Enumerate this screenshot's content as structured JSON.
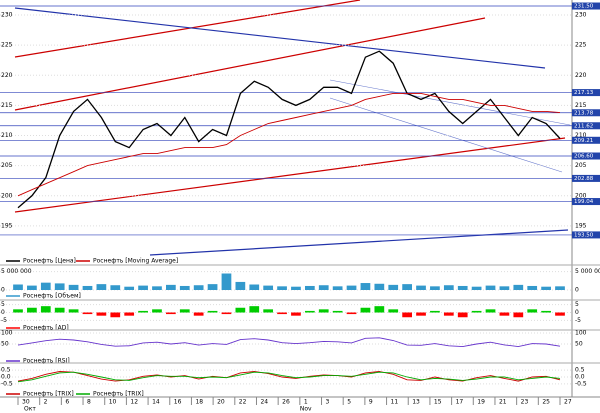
{
  "chart_data": [
    {
      "type": "line",
      "ylim": [
        190,
        232.5
      ],
      "yticks": [
        195,
        200,
        205,
        210,
        215,
        220,
        225,
        230
      ],
      "levels": [
        {
          "value": 231.5,
          "label": "231.50"
        },
        {
          "value": 217.13,
          "label": "217.13"
        },
        {
          "value": 213.78,
          "label": "213.78"
        },
        {
          "value": 211.62,
          "label": "211.62"
        },
        {
          "value": 209.21,
          "label": "209.21"
        },
        {
          "value": 206.6,
          "label": "206.60"
        },
        {
          "value": 202.88,
          "label": "202.88"
        },
        {
          "value": 199.04,
          "label": "199.04"
        },
        {
          "value": 193.5,
          "label": "193.50"
        }
      ],
      "series": [
        {
          "name": "Роснефть [Цена]",
          "color": "#000000",
          "values": [
            198,
            200,
            203,
            210,
            214,
            216,
            213,
            209,
            208,
            211,
            212,
            210,
            213,
            209,
            211,
            210,
            217,
            219,
            218,
            216,
            215,
            216,
            218,
            218,
            217,
            223,
            224,
            222,
            217,
            216,
            217,
            214,
            212,
            214,
            216,
            213,
            210,
            213,
            212,
            209.5
          ]
        },
        {
          "name": "Роснефть [Moving Average]",
          "color": "#cc0000",
          "values": [
            200,
            201,
            202,
            203,
            204,
            205,
            205.5,
            206,
            206.5,
            207,
            207,
            207.5,
            208,
            208,
            208,
            208.5,
            210,
            211,
            212,
            212.5,
            213,
            213.5,
            214,
            214.5,
            215,
            216,
            216.5,
            217,
            217,
            217,
            216.5,
            216,
            216,
            215.5,
            215,
            215,
            214.5,
            214,
            214,
            213.8
          ]
        }
      ]
    },
    {
      "type": "bar",
      "ylim": [
        0,
        6000000
      ],
      "yticks": [
        {
          "value": 0,
          "label": "0"
        },
        {
          "value": 5000000,
          "label": "5 000 000"
        }
      ],
      "series": [
        {
          "name": "Роснефть [Объем]",
          "color": "#3399cc",
          "values": [
            1500000,
            1200000,
            2000000,
            1800000,
            1400000,
            1100000,
            1600000,
            1300000,
            900000,
            1200000,
            1000000,
            1400000,
            1100000,
            1300000,
            1600000,
            4500000,
            2200000,
            1500000,
            1200000,
            1000000,
            900000,
            1100000,
            1300000,
            1000000,
            1200000,
            1900000,
            1700000,
            1400000,
            1600000,
            1200000,
            1000000,
            1300000,
            1100000,
            900000,
            1200000,
            1000000,
            1400000,
            1100000,
            900000,
            1000000
          ]
        }
      ]
    },
    {
      "type": "bar",
      "ylim": [
        -6,
        6
      ],
      "yticks": [
        -5,
        0,
        5
      ],
      "series": [
        {
          "name": "Роснефть [AD]",
          "color": "#ff0000",
          "positive_color": "#00cc00",
          "values": [
            2,
            3,
            4,
            3,
            2,
            -1,
            -2,
            -3,
            -2,
            1,
            2,
            -1,
            2,
            -2,
            1,
            -1,
            3,
            4,
            2,
            -1,
            -2,
            1,
            2,
            1,
            -1,
            3,
            4,
            2,
            -3,
            -2,
            1,
            -2,
            -3,
            1,
            2,
            -2,
            -3,
            2,
            1,
            -2
          ]
        }
      ]
    },
    {
      "type": "line",
      "ylim": [
        0,
        100
      ],
      "yticks": [
        50,
        100
      ],
      "series": [
        {
          "name": "Роснефть [RSI]",
          "color": "#6633cc",
          "values": [
            45,
            55,
            65,
            72,
            68,
            60,
            48,
            40,
            42,
            55,
            58,
            50,
            56,
            45,
            52,
            48,
            70,
            74,
            68,
            56,
            52,
            56,
            62,
            60,
            55,
            76,
            78,
            66,
            45,
            44,
            52,
            42,
            38,
            50,
            58,
            46,
            38,
            52,
            50,
            40
          ]
        }
      ]
    },
    {
      "type": "line",
      "ylim": [
        -0.8,
        0.8
      ],
      "yticks": [
        {
          "value": -0.5,
          "label": "-0.5"
        },
        {
          "value": 0,
          "label": "0.0"
        },
        {
          "value": 0.5,
          "label": "0.5"
        }
      ],
      "series": [
        {
          "name": "Роснефть [TRIX]",
          "color": "#cc0000",
          "values": [
            -0.3,
            -0.1,
            0.2,
            0.4,
            0.35,
            0.1,
            -0.15,
            -0.3,
            -0.2,
            0.05,
            0.15,
            0,
            0.1,
            -0.15,
            0.05,
            -0.05,
            0.3,
            0.4,
            0.25,
            0,
            -0.1,
            0.05,
            0.15,
            0.1,
            0,
            0.3,
            0.4,
            0.2,
            -0.2,
            -0.25,
            0,
            -0.2,
            -0.3,
            -0.05,
            0.1,
            -0.1,
            -0.3,
            0,
            0.05,
            -0.2
          ]
        },
        {
          "name": "Роснефть [TRIX]",
          "color": "#00aa00",
          "values": [
            -0.35,
            -0.2,
            0.05,
            0.3,
            0.35,
            0.2,
            0,
            -0.2,
            -0.25,
            -0.05,
            0.1,
            0.05,
            0.05,
            -0.05,
            0,
            -0.05,
            0.15,
            0.35,
            0.3,
            0.1,
            -0.05,
            0,
            0.1,
            0.1,
            0.05,
            0.2,
            0.35,
            0.3,
            0,
            -0.2,
            -0.1,
            -0.15,
            -0.25,
            -0.15,
            0,
            0,
            -0.2,
            -0.1,
            0,
            -0.1
          ]
        }
      ]
    }
  ],
  "x_axis": {
    "labels": [
      "30",
      "2",
      "6",
      "8",
      "10",
      "12",
      "14",
      "16",
      "18",
      "20",
      "22",
      "24",
      "26",
      "1",
      "3",
      "5",
      "9",
      "11",
      "13",
      "15",
      "17",
      "19",
      "21",
      "23",
      "25",
      "27"
    ],
    "months": [
      "Окт",
      "Nov"
    ]
  }
}
